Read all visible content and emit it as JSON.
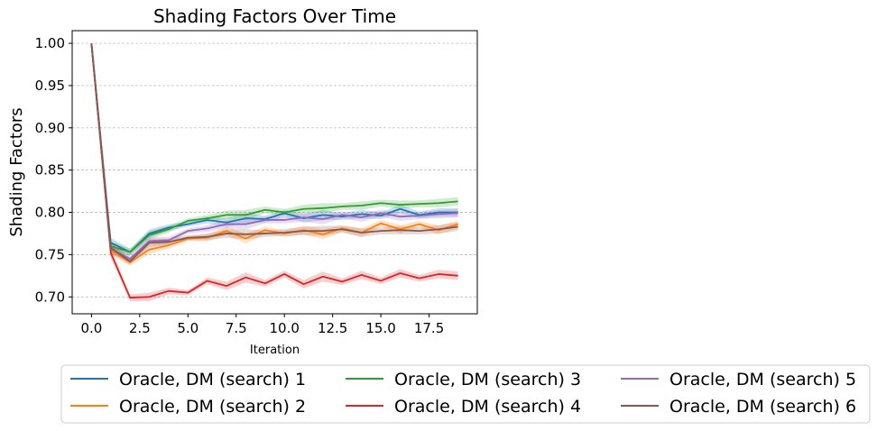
{
  "chart_data": {
    "type": "line",
    "title": "Shading Factors Over Time",
    "xlabel": "Iteration",
    "ylabel": "Shading Factors",
    "xlim": [
      -1,
      20
    ],
    "ylim": [
      0.68,
      1.015
    ],
    "xticks": [
      0.0,
      2.5,
      5.0,
      7.5,
      10.0,
      12.5,
      15.0,
      17.5
    ],
    "xtick_labels": [
      "0.0",
      "2.5",
      "5.0",
      "7.5",
      "10.0",
      "12.5",
      "15.0",
      "17.5"
    ],
    "yticks": [
      0.7,
      0.75,
      0.8,
      0.85,
      0.9,
      0.95,
      1.0
    ],
    "ytick_labels": [
      "0.70",
      "0.75",
      "0.80",
      "0.85",
      "0.90",
      "0.95",
      "1.00"
    ],
    "grid": "horizontal",
    "legend_placement": "bottom",
    "x": [
      0,
      1,
      2,
      3,
      4,
      5,
      6,
      7,
      8,
      9,
      10,
      11,
      12,
      13,
      14,
      15,
      16,
      17,
      18,
      19
    ],
    "series": [
      {
        "name": "Oracle, DM (search) 1",
        "color": "#1f77b4",
        "values": [
          1.0,
          0.764,
          0.753,
          0.775,
          0.782,
          0.786,
          0.791,
          0.788,
          0.793,
          0.792,
          0.799,
          0.793,
          0.797,
          0.795,
          0.798,
          0.796,
          0.804,
          0.797,
          0.8,
          0.8
        ]
      },
      {
        "name": "Oracle, DM (search) 2",
        "color": "#ff7f0e",
        "values": [
          1.0,
          0.755,
          0.741,
          0.756,
          0.761,
          0.769,
          0.77,
          0.778,
          0.769,
          0.779,
          0.775,
          0.779,
          0.774,
          0.781,
          0.776,
          0.787,
          0.78,
          0.786,
          0.779,
          0.786
        ]
      },
      {
        "name": "Oracle, DM (search) 3",
        "color": "#2ca02c",
        "values": [
          1.0,
          0.76,
          0.753,
          0.773,
          0.78,
          0.79,
          0.793,
          0.797,
          0.797,
          0.803,
          0.8,
          0.804,
          0.805,
          0.807,
          0.808,
          0.811,
          0.809,
          0.81,
          0.811,
          0.813
        ]
      },
      {
        "name": "Oracle, DM (search) 4",
        "color": "#d62728",
        "values": [
          1.0,
          0.752,
          0.699,
          0.7,
          0.707,
          0.705,
          0.719,
          0.713,
          0.723,
          0.716,
          0.727,
          0.715,
          0.724,
          0.718,
          0.726,
          0.719,
          0.728,
          0.722,
          0.727,
          0.725
        ]
      },
      {
        "name": "Oracle, DM (search) 5",
        "color": "#9467bd",
        "values": [
          1.0,
          0.757,
          0.745,
          0.766,
          0.767,
          0.778,
          0.781,
          0.786,
          0.786,
          0.791,
          0.791,
          0.794,
          0.792,
          0.797,
          0.794,
          0.799,
          0.795,
          0.796,
          0.798,
          0.799
        ]
      },
      {
        "name": "Oracle, DM (search) 6",
        "color": "#8c564b",
        "values": [
          1.0,
          0.758,
          0.742,
          0.764,
          0.765,
          0.77,
          0.771,
          0.775,
          0.774,
          0.775,
          0.776,
          0.778,
          0.778,
          0.78,
          0.776,
          0.778,
          0.779,
          0.778,
          0.78,
          0.783
        ]
      }
    ]
  }
}
